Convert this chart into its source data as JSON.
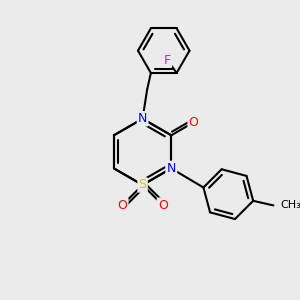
{
  "background_color": "#ebebeb",
  "bond_color": "#000000",
  "bond_width": 1.5,
  "atom_colors": {
    "N": "#0000ff",
    "O": "#ff0000",
    "S": "#cccc00",
    "F": "#ff00ff",
    "C": "#000000"
  },
  "font_size": 9,
  "figsize": [
    3.0,
    3.0
  ],
  "dpi": 100
}
